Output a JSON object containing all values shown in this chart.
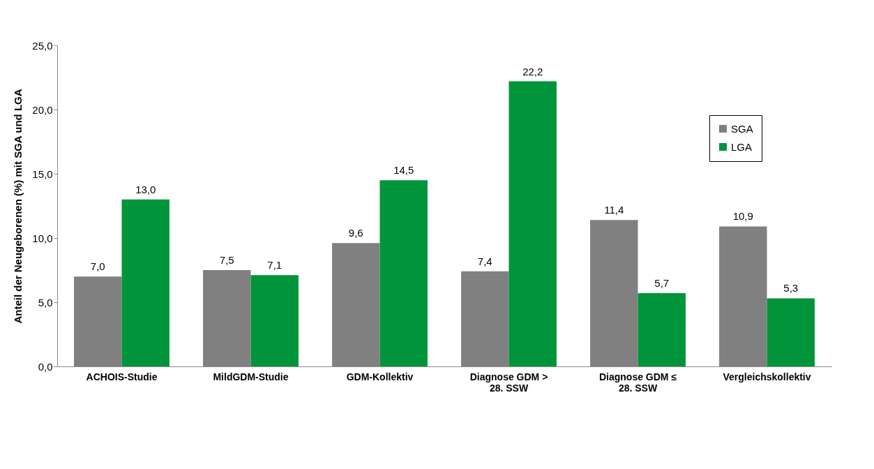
{
  "chart_data": {
    "type": "bar",
    "ylabel": "Anteil der Neugeborenen (%) mit SGA und LGA",
    "categories": [
      "ACHOIS-Studie",
      "MildGDM-Studie",
      "GDM-Kollektiv",
      "Diagnose GDM > 28. SSW",
      "Diagnose GDM ≤ 28. SSW",
      "Vergleichskollektiv"
    ],
    "series": [
      {
        "name": "SGA",
        "color": "#808080",
        "values": [
          7.0,
          7.5,
          9.6,
          7.4,
          11.4,
          10.9
        ],
        "value_labels": [
          "7,0",
          "7,5",
          "9,6",
          "7,4",
          "11,4",
          "10,9"
        ]
      },
      {
        "name": "LGA",
        "color": "#00953a",
        "values": [
          13.0,
          7.1,
          14.5,
          22.2,
          5.7,
          5.3
        ],
        "value_labels": [
          "13,0",
          "7,1",
          "14,5",
          "22,2",
          "5,7",
          "5,3"
        ]
      }
    ],
    "ylim": [
      0,
      25
    ],
    "yticks": [
      {
        "value": 0,
        "label": "0,0"
      },
      {
        "value": 5,
        "label": "5,0"
      },
      {
        "value": 10,
        "label": "10,0"
      },
      {
        "value": 15,
        "label": "15,0"
      },
      {
        "value": 20,
        "label": "20,0"
      },
      {
        "value": 25,
        "label": "25,0"
      }
    ],
    "grid": false,
    "legend": "top right"
  }
}
